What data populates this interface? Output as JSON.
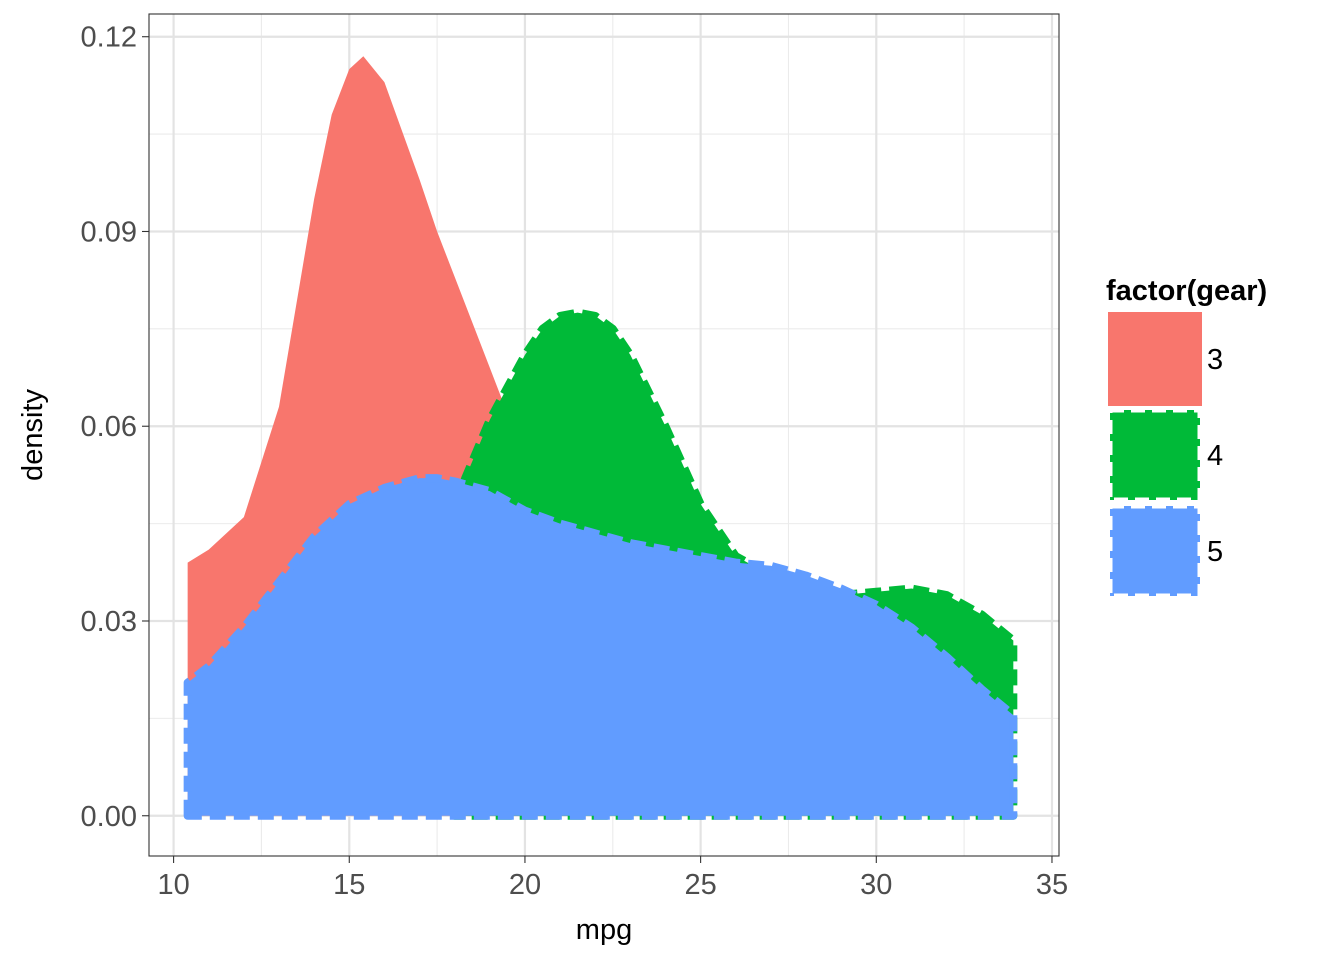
{
  "chart_data": {
    "type": "area",
    "xlabel": "mpg",
    "ylabel": "density",
    "xlim": [
      9.3,
      35.2
    ],
    "ylim": [
      -0.0062,
      0.1235
    ],
    "x_ticks": [
      10,
      15,
      20,
      25,
      30,
      35
    ],
    "x_tick_labels": [
      "10",
      "15",
      "20",
      "25",
      "30",
      "35"
    ],
    "y_ticks": [
      0,
      0.03,
      0.06,
      0.09,
      0.12
    ],
    "y_tick_labels": [
      "0.00",
      "0.03",
      "0.06",
      "0.09",
      "0.12"
    ],
    "grid": true,
    "legend": {
      "title": "factor(gear)",
      "position": "right"
    },
    "series": [
      {
        "name": "3",
        "color": "#F8766D",
        "linetype": "solid",
        "x": [
          10.4,
          11.0,
          12.0,
          13.0,
          14.0,
          14.5,
          15.0,
          15.4,
          16.0,
          17.0,
          17.5,
          18.0,
          19.0,
          20.0,
          20.5,
          21.5
        ],
        "values": [
          0.039,
          0.041,
          0.046,
          0.063,
          0.095,
          0.108,
          0.115,
          0.117,
          0.113,
          0.098,
          0.09,
          0.083,
          0.069,
          0.055,
          0.048,
          0.0
        ]
      },
      {
        "name": "4",
        "color": "#00BA38",
        "linetype": "dashed",
        "x": [
          18.0,
          18.3,
          19.0,
          20.0,
          20.5,
          21.0,
          21.5,
          22.0,
          22.5,
          23.0,
          24.0,
          25.0,
          26.0,
          27.0,
          28.0,
          29.0,
          30.0,
          31.0,
          32.0,
          33.0,
          33.9
        ],
        "values": [
          0.047,
          0.052,
          0.061,
          0.071,
          0.075,
          0.077,
          0.0775,
          0.077,
          0.075,
          0.071,
          0.06,
          0.048,
          0.04,
          0.037,
          0.035,
          0.034,
          0.0345,
          0.035,
          0.034,
          0.031,
          0.027
        ]
      },
      {
        "name": "5",
        "color": "#619CFF",
        "linetype": "dashed",
        "x": [
          10.4,
          11.0,
          12.0,
          13.0,
          14.0,
          15.0,
          16.0,
          17.0,
          17.5,
          18.0,
          19.0,
          20.0,
          21.0,
          22.0,
          23.0,
          24.0,
          25.0,
          26.0,
          27.0,
          28.0,
          29.0,
          30.0,
          31.0,
          32.0,
          33.0,
          33.9
        ],
        "values": [
          0.0205,
          0.023,
          0.029,
          0.036,
          0.043,
          0.048,
          0.0505,
          0.052,
          0.052,
          0.0515,
          0.05,
          0.047,
          0.045,
          0.0435,
          0.042,
          0.041,
          0.04,
          0.039,
          0.0385,
          0.037,
          0.035,
          0.0325,
          0.029,
          0.0245,
          0.0195,
          0.0155
        ]
      }
    ]
  }
}
